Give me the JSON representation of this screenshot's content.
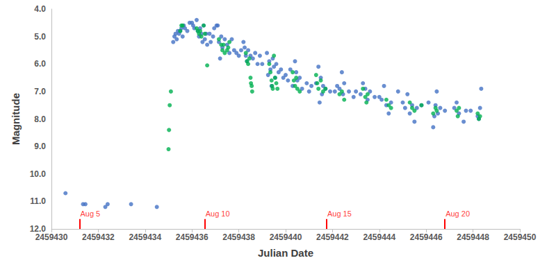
{
  "chart_data": {
    "type": "scatter",
    "x_label": "Julian Date",
    "y_label": "Magnitude",
    "xlim": [
      2459430,
      2459450
    ],
    "xticks": [
      2459430,
      2459432,
      2459434,
      2459436,
      2459438,
      2459440,
      2459442,
      2459444,
      2459446,
      2459448,
      2459450
    ],
    "ylim": [
      12,
      4
    ],
    "yticks": [
      {
        "value": 4,
        "label": "4.0"
      },
      {
        "value": 5,
        "label": "5.0"
      },
      {
        "value": 6,
        "label": "6.0"
      },
      {
        "value": 7,
        "label": "7.0"
      },
      {
        "value": 8,
        "label": "8.0"
      },
      {
        "value": 9,
        "label": "9.0"
      },
      {
        "value": 10,
        "label": "10.0"
      },
      {
        "value": 11,
        "label": "11.0"
      },
      {
        "value": 12,
        "label": "12.0"
      }
    ],
    "grid": false,
    "annotations": [
      {
        "text": "Aug 5",
        "x": 2459431.2,
        "color": "#ff0000"
      },
      {
        "text": "Aug 10",
        "x": 2459436.55,
        "color": "#ff0000"
      },
      {
        "text": "Aug 15",
        "x": 2459441.75,
        "color": "#ff0000"
      },
      {
        "text": "Aug 20",
        "x": 2459446.8,
        "color": "#ff0000"
      }
    ],
    "series": [
      {
        "color": "#4472c4",
        "marker": "circle",
        "x": [
          2459430.6,
          2459431.35,
          2459431.45,
          2459432.3,
          2459432.4,
          2459433.4,
          2459434.5,
          2459435.2,
          2459435.25,
          2459435.3,
          2459435.35,
          2459435.4,
          2459435.45,
          2459435.5,
          2459435.55,
          2459435.6,
          2459435.65,
          2459435.7,
          2459435.8,
          2459435.9,
          2459436.0,
          2459436.05,
          2459436.1,
          2459436.2,
          2459436.25,
          2459436.3,
          2459436.35,
          2459436.4,
          2459436.45,
          2459436.5,
          2459436.55,
          2459436.6,
          2459436.65,
          2459436.75,
          2459436.8,
          2459436.9,
          2459436.95,
          2459437.05,
          2459437.1,
          2459437.15,
          2459437.2,
          2459437.25,
          2459437.3,
          2459437.4,
          2459437.5,
          2459437.6,
          2459437.7,
          2459437.8,
          2459437.9,
          2459438.0,
          2459438.1,
          2459438.2,
          2459438.25,
          2459438.3,
          2459438.35,
          2459438.4,
          2459438.5,
          2459438.6,
          2459438.7,
          2459438.8,
          2459438.9,
          2459439.0,
          2459439.2,
          2459439.25,
          2459439.3,
          2459439.35,
          2459439.4,
          2459439.45,
          2459439.5,
          2459439.55,
          2459439.6,
          2459439.7,
          2459439.8,
          2459439.9,
          2459440.0,
          2459440.1,
          2459440.2,
          2459440.3,
          2459440.4,
          2459440.45,
          2459440.5,
          2459440.6,
          2459440.7,
          2459440.9,
          2459441.0,
          2459441.1,
          2459441.3,
          2459441.4,
          2459441.45,
          2459441.5,
          2459441.55,
          2459441.6,
          2459441.7,
          2459441.9,
          2459442.1,
          2459442.2,
          2459442.3,
          2459442.4,
          2459442.45,
          2459442.5,
          2459442.7,
          2459442.9,
          2459443.0,
          2459443.2,
          2459443.3,
          2459443.4,
          2459443.5,
          2459443.6,
          2459443.8,
          2459444.0,
          2459444.1,
          2459444.2,
          2459444.3,
          2459444.4,
          2459444.5,
          2459444.8,
          2459445.0,
          2459445.1,
          2459445.2,
          2459445.3,
          2459445.4,
          2459445.5,
          2459445.6,
          2459445.8,
          2459446.1,
          2459446.3,
          2459446.35,
          2459446.4,
          2459446.45,
          2459446.5,
          2459446.6,
          2459446.8,
          2459447.2,
          2459447.3,
          2459447.4,
          2459447.6,
          2459447.7,
          2459447.9,
          2459448.2,
          2459448.25,
          2459448.3,
          2459448.35
        ],
        "values": [
          10.7,
          11.1,
          11.1,
          11.2,
          11.1,
          11.1,
          11.2,
          5.2,
          5.0,
          4.9,
          5.1,
          4.8,
          4.9,
          4.8,
          4.7,
          5.0,
          4.6,
          4.7,
          4.8,
          4.5,
          4.5,
          4.6,
          4.7,
          4.4,
          4.8,
          5.0,
          4.7,
          4.9,
          5.2,
          4.6,
          5.1,
          4.9,
          5.3,
          4.9,
          5.2,
          5.0,
          4.7,
          4.6,
          4.6,
          5.2,
          5.8,
          5.0,
          5.4,
          5.1,
          5.3,
          5.6,
          5.1,
          5.5,
          5.6,
          5.7,
          5.5,
          5.2,
          5.4,
          5.7,
          5.9,
          5.5,
          5.7,
          5.8,
          5.6,
          6.0,
          5.7,
          6.0,
          5.6,
          6.4,
          5.9,
          6.2,
          6.8,
          5.8,
          6.1,
          6.5,
          6.0,
          6.3,
          6.2,
          6.5,
          6.4,
          6.6,
          6.2,
          6.8,
          5.9,
          6.3,
          6.6,
          6.5,
          6.9,
          6.7,
          7.0,
          6.8,
          6.7,
          6.1,
          7.4,
          6.5,
          7.1,
          6.8,
          6.9,
          7.0,
          7.0,
          6.8,
          6.9,
          6.3,
          7.1,
          6.7,
          7.0,
          7.2,
          7.0,
          7.1,
          6.7,
          6.9,
          7.3,
          7.0,
          7.2,
          7.2,
          7.3,
          6.8,
          7.5,
          7.8,
          7.4,
          7.0,
          7.4,
          7.6,
          7.1,
          7.8,
          7.5,
          8.1,
          7.6,
          7.5,
          7.4,
          8.3,
          7.9,
          7.5,
          7.0,
          7.8,
          7.6,
          7.7,
          7.6,
          7.4,
          7.8,
          8.1,
          7.7,
          7.7,
          7.9,
          8.0,
          7.6,
          6.9
        ]
      },
      {
        "color": "#00b050",
        "marker": "circle",
        "x": [
          2459435.0,
          2459435.02,
          2459435.05,
          2459435.1,
          2459435.5,
          2459435.55,
          2459435.6,
          2459436.2,
          2459436.25,
          2459436.3,
          2459436.35,
          2459436.4,
          2459436.5,
          2459436.55,
          2459436.65,
          2459437.15,
          2459437.25,
          2459437.3,
          2459437.35,
          2459437.4,
          2459437.5,
          2459437.55,
          2459437.6,
          2459438.3,
          2459438.35,
          2459438.4,
          2459438.45,
          2459438.5,
          2459438.52,
          2459438.55,
          2459438.57,
          2459439.3,
          2459439.35,
          2459439.4,
          2459439.42,
          2459439.45,
          2459439.5,
          2459439.55,
          2459439.6,
          2459439.65,
          2459440.3,
          2459440.35,
          2459440.4,
          2459440.45,
          2459440.5,
          2459440.6,
          2459441.3,
          2459441.35,
          2459441.4,
          2459441.5,
          2459441.6,
          2459441.7,
          2459442.3,
          2459442.4,
          2459442.5,
          2459443.3,
          2459443.4,
          2459443.45,
          2459443.5,
          2459444.3,
          2459444.4,
          2459444.5,
          2459445.3,
          2459445.4,
          2459445.5,
          2459445.8,
          2459446.3,
          2459446.4,
          2459446.45,
          2459447.3,
          2459447.35,
          2459447.4,
          2459448.2,
          2459448.25,
          2459448.3
        ],
        "values": [
          9.1,
          8.4,
          7.5,
          7.0,
          4.8,
          4.6,
          4.6,
          4.7,
          4.8,
          4.9,
          4.8,
          5.0,
          4.6,
          4.9,
          6.05,
          5.1,
          5.3,
          5.5,
          5.3,
          5.6,
          5.5,
          5.4,
          5.2,
          5.6,
          5.9,
          6.0,
          5.8,
          6.5,
          6.7,
          6.8,
          7.0,
          6.0,
          6.3,
          6.6,
          6.8,
          6.9,
          5.7,
          6.5,
          6.7,
          6.9,
          6.3,
          6.6,
          6.8,
          6.5,
          6.9,
          7.0,
          6.4,
          6.7,
          6.9,
          6.6,
          7.0,
          6.9,
          7.1,
          7.0,
          7.3,
          6.9,
          7.2,
          7.4,
          7.1,
          7.3,
          7.5,
          7.6,
          7.4,
          7.6,
          7.7,
          7.5,
          7.8,
          7.6,
          7.7,
          7.7,
          7.9,
          7.6,
          7.8,
          8.0,
          7.9
        ]
      }
    ]
  }
}
